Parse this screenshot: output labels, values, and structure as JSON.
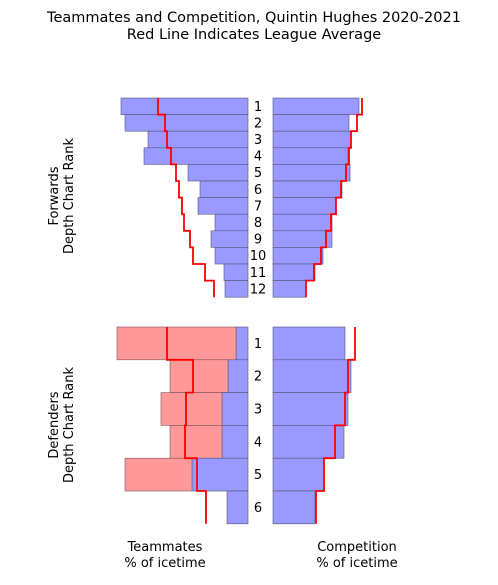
{
  "chart_data": {
    "type": "bar",
    "title_line1": "Teammates and Competition, Quintin Hughes 2020-2021",
    "title_line2": "Red Line Indicates League Average",
    "forwards_label_line1": "Forwards",
    "forwards_label_line2": "Depth Chart Rank",
    "defenders_label_line1": "Defenders",
    "defenders_label_line2": "Depth Chart Rank",
    "teammates_label_line1": "Teammates",
    "teammates_label_line2": "% of icetime",
    "competition_label_line1": "Competition",
    "competition_label_line2": "% of icetime",
    "colors": {
      "forward_bar": "#9999ff",
      "defender_teammate_blue": "#9999ff",
      "defender_teammate_red": "#ff9999",
      "average_line": "#ff0000"
    },
    "forwards": {
      "ranks": [
        "1",
        "2",
        "3",
        "4",
        "5",
        "6",
        "7",
        "8",
        "9",
        "10",
        "11",
        "12"
      ],
      "teammates": [
        127,
        123,
        100,
        104,
        60,
        48,
        50,
        33,
        37,
        33,
        24,
        23
      ],
      "teammates_avg": [
        90,
        83,
        81,
        77,
        72,
        69,
        66,
        64,
        58,
        55,
        43,
        34
      ],
      "competition": [
        86,
        76,
        78,
        75,
        77,
        69,
        63,
        59,
        59,
        50,
        42,
        33
      ],
      "competition_avg": [
        89,
        84,
        78,
        76,
        73,
        68,
        63,
        58,
        53,
        48,
        41,
        33
      ]
    },
    "defenders": {
      "ranks": [
        "1",
        "2",
        "3",
        "4",
        "5",
        "6"
      ],
      "teammates_blue": [
        12,
        20,
        26,
        26,
        56,
        21
      ],
      "teammates_red": [
        119,
        58,
        61,
        52,
        67,
        0
      ],
      "teammates_avg": [
        81,
        55,
        62,
        63,
        51,
        42
      ],
      "competition": [
        72,
        78,
        75,
        71,
        51,
        42
      ],
      "competition_avg": [
        82,
        75,
        72,
        62,
        51,
        43
      ]
    }
  }
}
